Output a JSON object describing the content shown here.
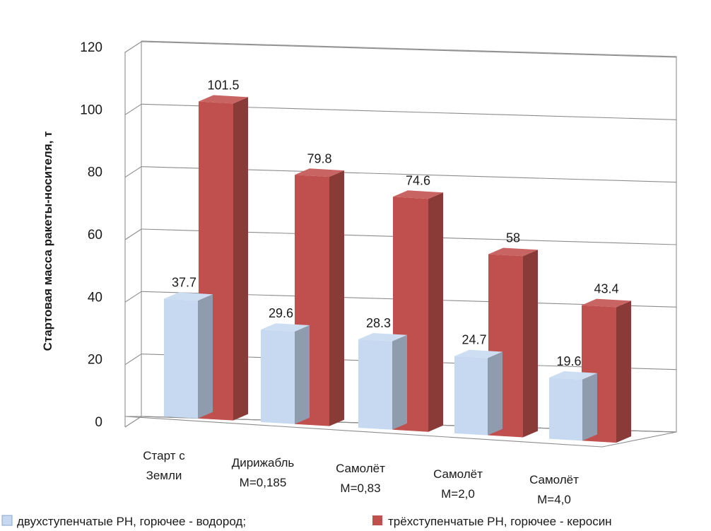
{
  "chart_data": {
    "type": "bar",
    "ylabel": "Стартовая масса ракеты-носителя, т",
    "ylim": [
      0,
      120
    ],
    "yticks": [
      "0",
      "20",
      "40",
      "60",
      "80",
      "100",
      "120"
    ],
    "grid": true,
    "legend_position": "bottom",
    "categories": [
      {
        "line1": "Старт с",
        "line2": "Земли"
      },
      {
        "line1": "Дирижабль",
        "line2": "М=0,185"
      },
      {
        "line1": "Самолёт",
        "line2": "М=0,83"
      },
      {
        "line1": "Самолёт",
        "line2": "М=2,0"
      },
      {
        "line1": "Самолёт",
        "line2": "М=4,0"
      }
    ],
    "series": [
      {
        "name": "двухступенчатые РН, горючее - водород;",
        "values": [
          37.7,
          29.6,
          28.3,
          24.7,
          19.6
        ],
        "labels": [
          "37.7",
          "29.6",
          "28.3",
          "24.7",
          "19.6"
        ],
        "color": "#c6d9f1"
      },
      {
        "name": "трёхступенчатые РН, горючее - керосин",
        "values": [
          101.5,
          79.8,
          74.6,
          58,
          43.4
        ],
        "labels": [
          "101.5",
          "79.8",
          "74.6",
          "58",
          "43.4"
        ],
        "color": "#c0504d"
      }
    ]
  }
}
